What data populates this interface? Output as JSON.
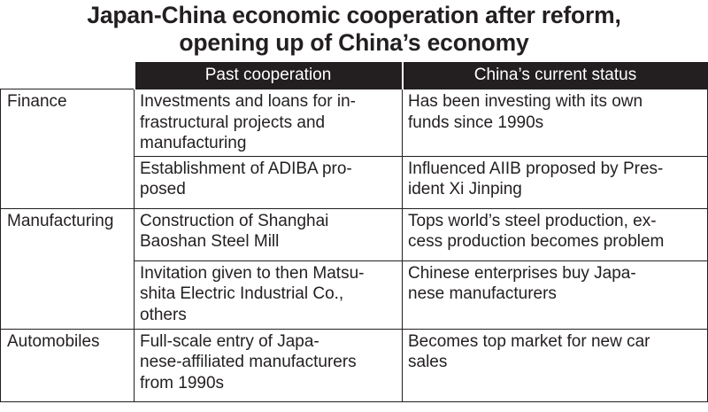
{
  "title": {
    "line1": "Japan-China economic cooperation after reform,",
    "line2": "opening up of China’s economy"
  },
  "table": {
    "headers": [
      "",
      "Past cooperation",
      "China’s current status"
    ],
    "rows": [
      {
        "category": "Finance",
        "past": [
          "Investments and loans for in-",
          "frastructural projects and",
          "manufacturing"
        ],
        "current": [
          "Has been investing with its own",
          "funds since 1990s"
        ]
      },
      {
        "category": "",
        "past": [
          "Establishment of ADIBA pro-",
          "posed"
        ],
        "current": [
          "Influenced AIIB proposed by Pres-",
          "ident Xi Jinping"
        ]
      },
      {
        "category": "Manufacturing",
        "past": [
          "Construction of Shanghai",
          "Baoshan Steel Mill"
        ],
        "current": [
          "Tops world’s steel production, ex-",
          "cess production becomes problem"
        ]
      },
      {
        "category": "",
        "past": [
          "Invitation given to then Matsu-",
          "shita Electric Industrial Co.,",
          "others"
        ],
        "current": [
          "Chinese enterprises buy Japa-",
          "nese manufacturers"
        ]
      },
      {
        "category": "Automobiles",
        "past": [
          "Full-scale entry of Japa-",
          "nese-affiliated manufacturers",
          "from 1990s"
        ],
        "current": [
          "Becomes top market for new car",
          "sales"
        ]
      }
    ]
  }
}
